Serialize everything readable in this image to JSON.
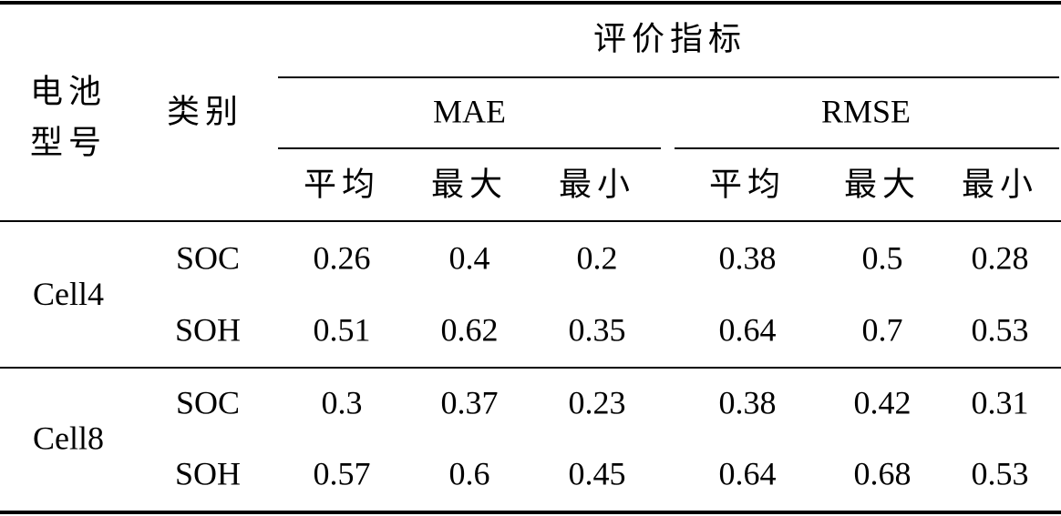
{
  "table": {
    "header": {
      "battery_model": [
        "电池",
        "型号"
      ],
      "category": "类别",
      "metrics": "评价指标",
      "groups": [
        "MAE",
        "RMSE"
      ],
      "stats": [
        "平均",
        "最大",
        "最小",
        "平均",
        "最大",
        "最小"
      ]
    },
    "groups": [
      {
        "battery": "Cell4",
        "rows": [
          {
            "category": "SOC",
            "values": [
              "0.26",
              "0.4",
              "0.2",
              "0.38",
              "0.5",
              "0.28"
            ]
          },
          {
            "category": "SOH",
            "values": [
              "0.51",
              "0.62",
              "0.35",
              "0.64",
              "0.7",
              "0.53"
            ]
          }
        ]
      },
      {
        "battery": "Cell8",
        "rows": [
          {
            "category": "SOC",
            "values": [
              "0.3",
              "0.37",
              "0.23",
              "0.38",
              "0.42",
              "0.31"
            ]
          },
          {
            "category": "SOH",
            "values": [
              "0.57",
              "0.6",
              "0.45",
              "0.64",
              "0.68",
              "0.53"
            ]
          }
        ]
      }
    ]
  }
}
